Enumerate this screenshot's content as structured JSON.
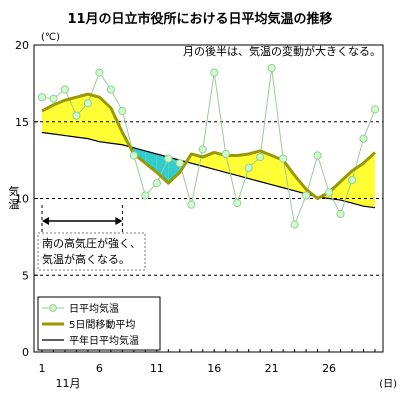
{
  "chart_data": {
    "type": "line",
    "title": "11月の日立市役所における日平均気温の推移",
    "y_unit": "(℃)",
    "y_axis_label": "気温",
    "x_month_label": "11月",
    "x_unit": "(日)",
    "xlim": [
      1,
      30
    ],
    "ylim": [
      0,
      20
    ],
    "x_ticks": [
      1,
      6,
      11,
      16,
      21,
      26
    ],
    "y_ticks": [
      0,
      5,
      10,
      15,
      20
    ],
    "dashed_gridlines": [
      5,
      10,
      15
    ],
    "annotation_top": "月の後半は、気温の変動が大きくなる。",
    "annotation_box_lines": [
      "南の高気圧が強く、",
      "気温が高くなる。"
    ],
    "annotation_span_days": [
      1,
      8
    ],
    "fill_colors": {
      "above_normal": "#ffff33",
      "below_normal": "#33cccc"
    },
    "legend": {
      "position": "bottom-left",
      "items": [
        {
          "key": "daily",
          "label": "日平均気温"
        },
        {
          "key": "ma5",
          "label": "5日間移動平均"
        },
        {
          "key": "normal",
          "label": "平年日平均気温"
        }
      ]
    },
    "series": [
      {
        "key": "daily",
        "name": "日平均気温",
        "color": "#99cc99",
        "marker_fill": "#ccffcc",
        "x": [
          1,
          2,
          3,
          4,
          5,
          6,
          7,
          8,
          9,
          10,
          11,
          12,
          13,
          14,
          15,
          16,
          17,
          18,
          19,
          20,
          21,
          22,
          23,
          24,
          25,
          26,
          27,
          28,
          29,
          30
        ],
        "values": [
          16.6,
          16.5,
          17.1,
          15.4,
          16.2,
          18.2,
          17.1,
          15.7,
          12.8,
          10.2,
          11.0,
          12.6,
          12.3,
          9.6,
          13.2,
          18.2,
          12.9,
          9.7,
          12.0,
          12.7,
          18.5,
          12.6,
          8.3,
          10.2,
          12.8,
          10.4,
          9.0,
          11.2,
          13.9,
          15.8
        ]
      },
      {
        "key": "ma5",
        "name": "5日間移動平均",
        "color": "#999900",
        "x": [
          1,
          2,
          3,
          4,
          5,
          6,
          7,
          8,
          9,
          10,
          11,
          12,
          13,
          14,
          15,
          16,
          17,
          18,
          19,
          20,
          21,
          22,
          23,
          24,
          25,
          26,
          27,
          28,
          29,
          30
        ],
        "values": [
          15.7,
          16.1,
          16.4,
          16.6,
          16.8,
          16.6,
          15.9,
          14.3,
          12.9,
          12.3,
          11.7,
          11.0,
          11.7,
          12.9,
          12.7,
          13.0,
          12.8,
          12.8,
          12.9,
          13.1,
          12.8,
          12.5,
          11.5,
          10.6,
          10.0,
          10.4,
          11.1,
          11.8,
          12.3,
          13.0
        ]
      },
      {
        "key": "normal",
        "name": "平年日平均気温",
        "color": "#000000",
        "x": [
          1,
          2,
          3,
          4,
          5,
          6,
          7,
          8,
          9,
          10,
          11,
          12,
          13,
          14,
          15,
          16,
          17,
          18,
          19,
          20,
          21,
          22,
          23,
          24,
          25,
          26,
          27,
          28,
          29,
          30
        ],
        "values": [
          14.3,
          14.2,
          14.1,
          14.0,
          13.9,
          13.7,
          13.6,
          13.5,
          13.3,
          13.1,
          12.9,
          12.7,
          12.5,
          12.3,
          12.1,
          11.9,
          11.7,
          11.5,
          11.3,
          11.1,
          10.9,
          10.7,
          10.5,
          10.3,
          10.1,
          10.0,
          9.9,
          9.7,
          9.5,
          9.4
        ]
      }
    ]
  }
}
